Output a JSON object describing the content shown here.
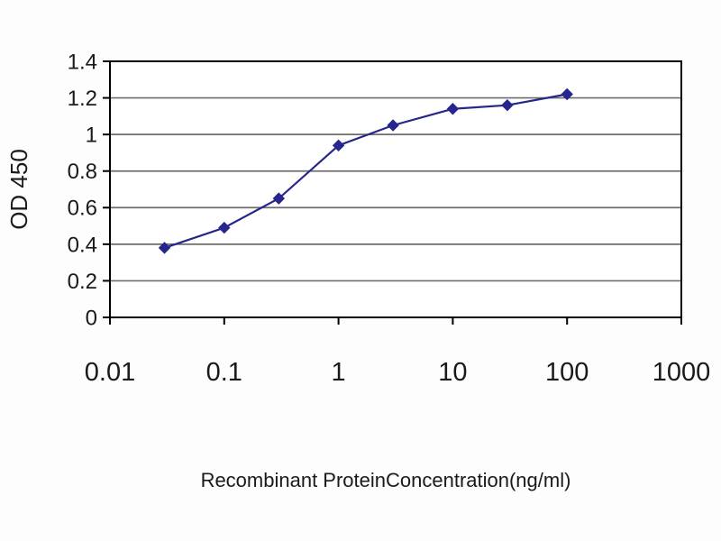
{
  "chart_data": {
    "type": "line",
    "title": "",
    "xlabel": "Recombinant ProteinConcentration(ng/ml)",
    "ylabel": "OD 450",
    "xscale": "log",
    "xlim": [
      0.01,
      1000
    ],
    "ylim": [
      0,
      1.4
    ],
    "xticks": [
      0.01,
      0.1,
      1,
      10,
      100,
      1000
    ],
    "yticks": [
      0,
      0.2,
      0.4,
      0.6,
      0.8,
      1,
      1.2,
      1.4
    ],
    "grid": "horizontal",
    "legend": false,
    "series": [
      {
        "name": "OD 450",
        "marker": "diamond",
        "color": "#26268c",
        "x": [
          0.03,
          0.1,
          0.3,
          1,
          3,
          10,
          30,
          100
        ],
        "y": [
          0.38,
          0.49,
          0.65,
          0.94,
          1.05,
          1.14,
          1.16,
          1.22
        ]
      }
    ],
    "colors": {
      "line": "#26268c",
      "grid": "#6e6e6e",
      "axis": "#000000",
      "text": "#1a1a1a",
      "plot_bg": "#ffffff"
    }
  }
}
